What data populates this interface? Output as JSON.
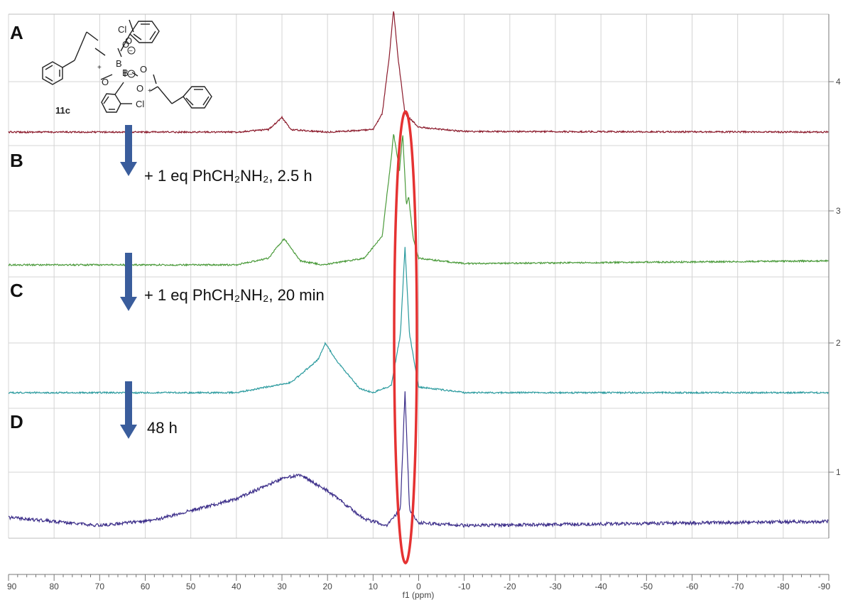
{
  "chart_data": {
    "type": "line",
    "title": "",
    "xlabel": "f1 (ppm)",
    "ylabel": "",
    "xlim": [
      90,
      -90
    ],
    "x_ticks": [
      "90",
      "80",
      "70",
      "60",
      "50",
      "40",
      "30",
      "20",
      "10",
      "0",
      "-10",
      "-20",
      "-30",
      "-40",
      "-50",
      "-60",
      "-70",
      "-80",
      "-90"
    ],
    "y_right_ticks": [
      "4",
      "3",
      "2",
      "1"
    ],
    "grid": true,
    "stacked": true,
    "series": [
      {
        "label": "A",
        "color": "#8b1a2b",
        "points": [
          [
            90,
            0
          ],
          [
            40,
            0
          ],
          [
            33,
            0.02
          ],
          [
            30,
            0.12
          ],
          [
            28,
            0.02
          ],
          [
            20,
            0
          ],
          [
            10,
            0.02
          ],
          [
            8,
            0.15
          ],
          [
            6.5,
            0.6
          ],
          [
            5.5,
            1.0
          ],
          [
            4.5,
            0.6
          ],
          [
            3,
            0.15
          ],
          [
            0,
            0.04
          ],
          [
            -10,
            0.005
          ],
          [
            -90,
            0
          ]
        ]
      },
      {
        "label": "B",
        "color": "#4a9a3a",
        "points": [
          [
            90,
            0
          ],
          [
            40,
            0
          ],
          [
            33,
            0.05
          ],
          [
            29.5,
            0.2
          ],
          [
            26,
            0.03
          ],
          [
            21,
            0
          ],
          [
            12,
            0.05
          ],
          [
            8,
            0.22
          ],
          [
            6,
            0.82
          ],
          [
            5.5,
            1.0
          ],
          [
            4.2,
            0.72
          ],
          [
            3.5,
            1.0
          ],
          [
            2.7,
            0.45
          ],
          [
            2.2,
            0.52
          ],
          [
            1.2,
            0.2
          ],
          [
            0,
            0.05
          ],
          [
            -10,
            0.01
          ],
          [
            -90,
            0.03
          ]
        ]
      },
      {
        "label": "C",
        "color": "#2a9a9e",
        "points": [
          [
            90,
            0
          ],
          [
            40,
            0
          ],
          [
            28,
            0.07
          ],
          [
            22,
            0.23
          ],
          [
            20.5,
            0.34
          ],
          [
            18,
            0.22
          ],
          [
            13,
            0.03
          ],
          [
            10,
            0
          ],
          [
            6,
            0.05
          ],
          [
            4,
            0.4
          ],
          [
            3,
            1.0
          ],
          [
            2,
            0.4
          ],
          [
            0,
            0.04
          ],
          [
            -10,
            0
          ],
          [
            -90,
            0
          ]
        ]
      },
      {
        "label": "D",
        "color": "#3d2f8a",
        "points": [
          [
            90,
            0.06
          ],
          [
            70,
            0
          ],
          [
            58,
            0.04
          ],
          [
            40,
            0.2
          ],
          [
            30,
            0.35
          ],
          [
            26,
            0.38
          ],
          [
            20,
            0.26
          ],
          [
            12,
            0.05
          ],
          [
            7,
            0
          ],
          [
            4,
            0.12
          ],
          [
            3,
            1.0
          ],
          [
            2,
            0.12
          ],
          [
            0,
            0.02
          ],
          [
            -10,
            0
          ],
          [
            -90,
            0.03
          ]
        ]
      }
    ],
    "annotations": {
      "conditions": [
        "+ 1 eq PhCH₂NH₂, 2.5 h",
        "+ 1 eq PhCH₂NH₂, 20 min",
        "48 h"
      ],
      "highlight_ppm": 3,
      "highlight_color": "#e53232",
      "arrow_color": "#3a5d9c"
    },
    "structure": {
      "compound_label": "11c",
      "atom_labels": [
        "Cl",
        "O",
        "B",
        "O",
        "O",
        "B",
        "O",
        "O",
        "Cl"
      ],
      "charges": [
        "−",
        "−",
        "+",
        "+"
      ]
    }
  }
}
